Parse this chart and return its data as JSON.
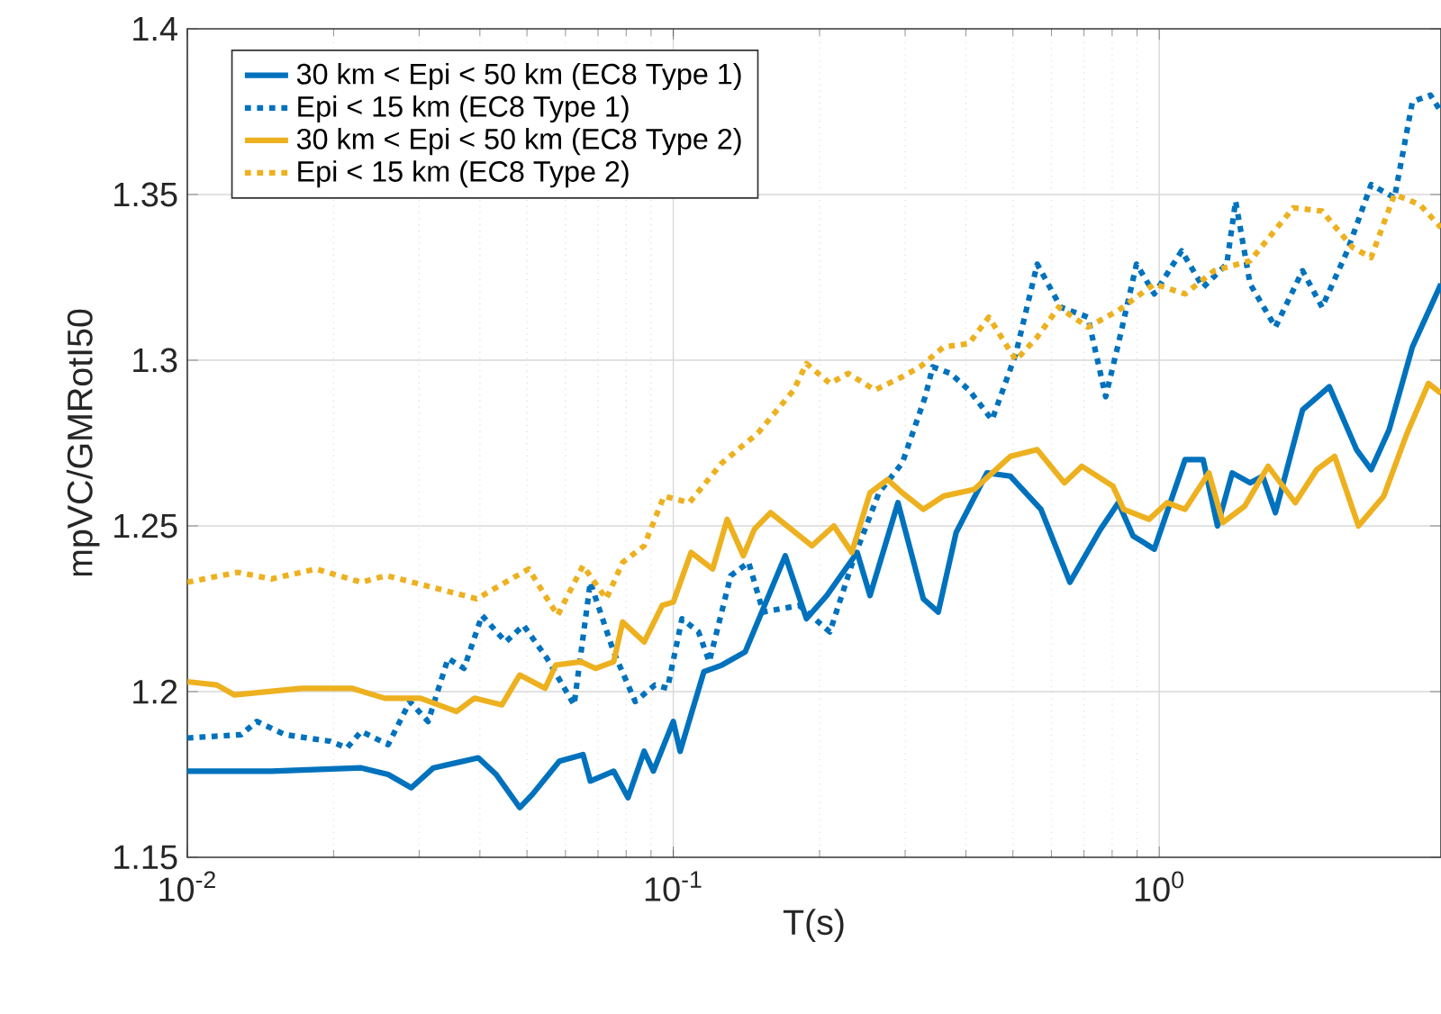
{
  "chart_data": {
    "type": "line",
    "xlabel": "T(s)",
    "ylabel": "mpVC/GMRotI50",
    "log": "x",
    "grid": true,
    "legend": "top left",
    "xlim": [
      0.01,
      3.8
    ],
    "ylim": [
      1.15,
      1.4
    ],
    "xticks": [
      {
        "value": 0.01,
        "label": "10$^{-2}$"
      },
      {
        "value": 0.1,
        "label": "10$^{-1}$"
      },
      {
        "value": 1,
        "label": "10$^{0}$"
      }
    ],
    "yticks": [
      1.15,
      1.2,
      1.25,
      1.3,
      1.35,
      1.4
    ],
    "series": [
      {
        "name": "30 km < Epi < 50 km (EC8 Type 1)",
        "color": "#0072bd",
        "line_style": "solid",
        "x": [
          0.01,
          0.0149,
          0.0228,
          0.0259,
          0.0289,
          0.0321,
          0.0397,
          0.0432,
          0.0483,
          0.0513,
          0.0583,
          0.0652,
          0.0675,
          0.0754,
          0.0807,
          0.0871,
          0.091,
          0.1,
          0.1033,
          0.1156,
          0.1259,
          0.1406,
          0.17,
          0.188,
          0.207,
          0.239,
          0.254,
          0.29,
          0.327,
          0.351,
          0.382,
          0.442,
          0.494,
          0.571,
          0.655,
          0.757,
          0.824,
          0.883,
          0.977,
          1.13,
          1.231,
          1.318,
          1.413,
          1.538,
          1.633,
          1.734,
          1.972,
          2.239,
          2.547,
          2.729,
          2.972,
          3.319,
          3.8
        ],
        "values": [
          1.176,
          1.176,
          1.177,
          1.175,
          1.171,
          1.177,
          1.18,
          1.175,
          1.165,
          1.169,
          1.179,
          1.181,
          1.173,
          1.176,
          1.168,
          1.182,
          1.176,
          1.191,
          1.182,
          1.206,
          1.208,
          1.212,
          1.241,
          1.222,
          1.229,
          1.242,
          1.229,
          1.257,
          1.228,
          1.224,
          1.248,
          1.266,
          1.265,
          1.255,
          1.233,
          1.249,
          1.257,
          1.247,
          1.243,
          1.27,
          1.27,
          1.25,
          1.266,
          1.263,
          1.265,
          1.254,
          1.285,
          1.292,
          1.273,
          1.267,
          1.279,
          1.304,
          1.323
        ]
      },
      {
        "name": "Epi < 15 km (EC8 Type 1)",
        "color": "#0072bd",
        "line_style": "dotted",
        "x": [
          0.01,
          0.0129,
          0.0139,
          0.0159,
          0.0197,
          0.0213,
          0.0228,
          0.0259,
          0.0287,
          0.0313,
          0.0344,
          0.0371,
          0.0404,
          0.0452,
          0.0492,
          0.055,
          0.0625,
          0.0675,
          0.0754,
          0.0835,
          0.0917,
          0.0973,
          0.1042,
          0.1127,
          0.1186,
          0.1313,
          0.1429,
          0.1531,
          0.1816,
          0.21,
          0.235,
          0.265,
          0.296,
          0.33,
          0.342,
          0.372,
          0.406,
          0.453,
          0.507,
          0.561,
          0.627,
          0.713,
          0.776,
          0.824,
          0.898,
          0.977,
          1.112,
          1.231,
          1.377,
          1.436,
          1.538,
          1.734,
          1.972,
          2.163,
          2.438,
          2.729,
          3.048,
          3.319,
          3.614,
          3.8
        ],
        "values": [
          1.186,
          1.187,
          1.191,
          1.187,
          1.185,
          1.183,
          1.188,
          1.184,
          1.197,
          1.191,
          1.21,
          1.207,
          1.223,
          1.215,
          1.22,
          1.21,
          1.196,
          1.233,
          1.212,
          1.197,
          1.202,
          1.201,
          1.222,
          1.218,
          1.209,
          1.235,
          1.239,
          1.224,
          1.226,
          1.218,
          1.24,
          1.26,
          1.269,
          1.289,
          1.298,
          1.296,
          1.291,
          1.282,
          1.302,
          1.329,
          1.316,
          1.313,
          1.289,
          1.305,
          1.329,
          1.32,
          1.333,
          1.322,
          1.329,
          1.348,
          1.323,
          1.31,
          1.327,
          1.316,
          1.333,
          1.353,
          1.349,
          1.378,
          1.38,
          1.375
        ]
      },
      {
        "name": "30 km < Epi < 50 km (EC8 Type 2)",
        "color": "#edb120",
        "line_style": "solid",
        "x": [
          0.01,
          0.0115,
          0.0125,
          0.0172,
          0.0218,
          0.0255,
          0.0302,
          0.0358,
          0.039,
          0.0444,
          0.0483,
          0.0545,
          0.0573,
          0.0646,
          0.0692,
          0.0754,
          0.0787,
          0.0871,
          0.0949,
          0.1,
          0.1088,
          0.1205,
          0.1291,
          0.1394,
          0.1469,
          0.1585,
          0.193,
          0.214,
          0.233,
          0.254,
          0.276,
          0.296,
          0.327,
          0.36,
          0.416,
          0.494,
          0.561,
          0.638,
          0.693,
          0.803,
          0.845,
          0.953,
          1.038,
          1.13,
          1.265,
          1.352,
          1.5,
          1.675,
          1.905,
          2.109,
          2.296,
          2.57,
          2.897,
          3.236,
          3.581,
          3.8
        ],
        "values": [
          1.203,
          1.202,
          1.199,
          1.201,
          1.201,
          1.198,
          1.198,
          1.194,
          1.198,
          1.196,
          1.205,
          1.201,
          1.208,
          1.209,
          1.207,
          1.209,
          1.221,
          1.215,
          1.226,
          1.227,
          1.242,
          1.237,
          1.252,
          1.241,
          1.249,
          1.254,
          1.244,
          1.25,
          1.242,
          1.26,
          1.264,
          1.26,
          1.255,
          1.259,
          1.261,
          1.271,
          1.273,
          1.263,
          1.268,
          1.262,
          1.255,
          1.252,
          1.257,
          1.255,
          1.266,
          1.251,
          1.256,
          1.268,
          1.257,
          1.267,
          1.271,
          1.25,
          1.259,
          1.278,
          1.293,
          1.29
        ]
      },
      {
        "name": "Epi < 15 km (EC8 Type 2)",
        "color": "#edb120",
        "line_style": "dotted",
        "x": [
          0.01,
          0.0127,
          0.0149,
          0.0184,
          0.0228,
          0.0257,
          0.0329,
          0.0394,
          0.0504,
          0.0578,
          0.0652,
          0.0728,
          0.0787,
          0.0871,
          0.0957,
          0.1079,
          0.1259,
          0.1493,
          0.177,
          0.188,
          0.21,
          0.229,
          0.26,
          0.296,
          0.322,
          0.36,
          0.406,
          0.446,
          0.507,
          0.561,
          0.621,
          0.713,
          0.824,
          0.977,
          1.13,
          1.297,
          1.538,
          1.888,
          2.163,
          2.5,
          2.729,
          3.048,
          3.436,
          3.8
        ],
        "values": [
          1.233,
          1.236,
          1.234,
          1.237,
          1.233,
          1.235,
          1.231,
          1.228,
          1.237,
          1.223,
          1.238,
          1.228,
          1.239,
          1.244,
          1.259,
          1.257,
          1.269,
          1.278,
          1.291,
          1.299,
          1.293,
          1.296,
          1.291,
          1.295,
          1.298,
          1.304,
          1.305,
          1.313,
          1.3,
          1.307,
          1.316,
          1.31,
          1.315,
          1.323,
          1.32,
          1.327,
          1.33,
          1.346,
          1.345,
          1.334,
          1.331,
          1.35,
          1.347,
          1.34
        ]
      }
    ]
  }
}
